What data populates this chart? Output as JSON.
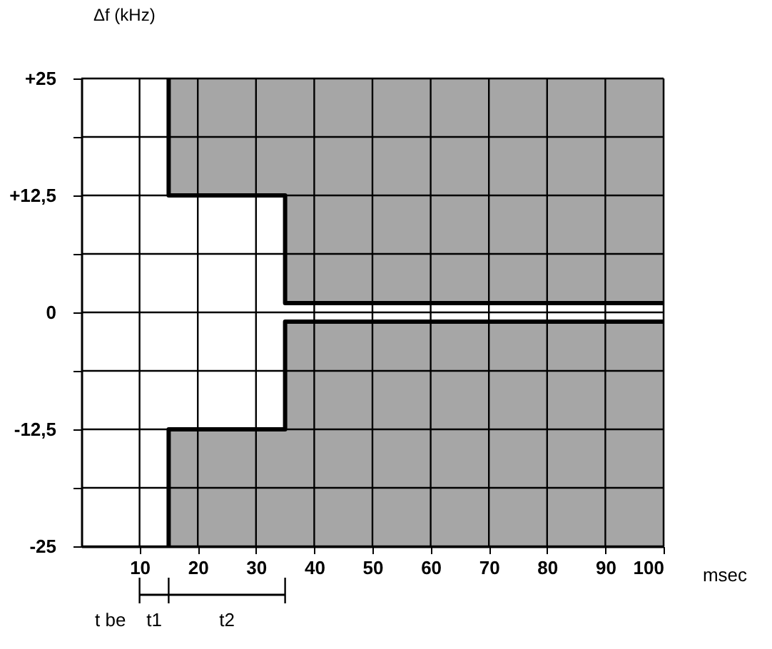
{
  "chart_data": {
    "type": "line",
    "xlabel": "msec",
    "ylabel": "Δf (kHz)",
    "xlim": [
      0,
      100
    ],
    "ylim": [
      -25,
      25
    ],
    "xticks": [
      10,
      20,
      30,
      40,
      50,
      60,
      70,
      80,
      90,
      100
    ],
    "yticks": [
      {
        "value": 25,
        "label": "+25"
      },
      {
        "value": 18.75,
        "label": null
      },
      {
        "value": 12.5,
        "label": "+12,5"
      },
      {
        "value": 6.25,
        "label": null
      },
      0,
      {
        "value": -6.25,
        "label": null
      },
      {
        "value": -12.5,
        "label": "-12,5"
      },
      {
        "value": -18.75,
        "label": null
      },
      -25
    ],
    "grid": true,
    "series": [
      {
        "color": "#000000",
        "x": [
          15,
          15,
          35,
          35,
          100
        ],
        "values": [
          25,
          12.5,
          12.5,
          1,
          1
        ],
        "lower": [
          25,
          12.5,
          12.5,
          1,
          1
        ],
        "upper": [
          25,
          25,
          25,
          25,
          25
        ]
      },
      {
        "color": "#000000",
        "x": [
          15,
          15,
          35,
          35,
          100
        ],
        "values": [
          -25,
          -12.5,
          -12.5,
          -1,
          -1
        ],
        "lower": [
          -25,
          -25,
          -25,
          -25,
          -25
        ],
        "upper": [
          -25,
          -12.5,
          -12.5,
          -1,
          -1
        ]
      }
    ],
    "annotations": [
      "t be",
      "t1",
      "t2"
    ]
  }
}
